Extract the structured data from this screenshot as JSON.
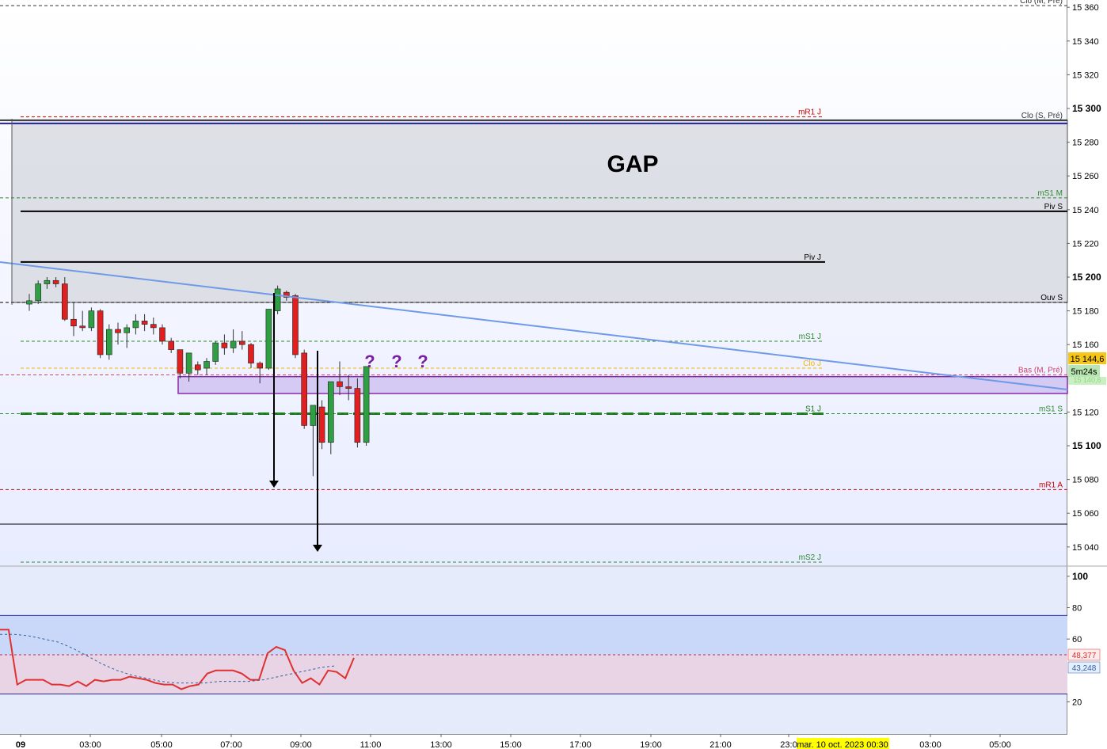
{
  "chart_data": [
    {
      "type": "candlestick",
      "panel": "price",
      "annotation_title": "GAP",
      "question_marks": [
        "?",
        "?",
        "?"
      ],
      "ylim": [
        15032,
        15362
      ],
      "y_ticks": [
        15040,
        15060,
        15080,
        15100,
        15120,
        15140,
        15160,
        15180,
        15200,
        15220,
        15240,
        15260,
        15280,
        15300,
        15320,
        15340,
        15360
      ],
      "y_tick_labels": [
        "15 040",
        "15 060",
        "15 080",
        "15 100",
        "15 120",
        "15 140",
        "15 160",
        "15 180",
        "15 200",
        "15 220",
        "15 240",
        "15 260",
        "15 280",
        "15 300",
        "15 320",
        "15 340",
        "15 360"
      ],
      "x_tick_labels": [
        "09",
        "03:00",
        "05:00",
        "07:00",
        "09:00",
        "11:00",
        "13:00",
        "15:00",
        "17:00",
        "19:00",
        "21:00",
        "23:0",
        "03:00",
        "05:00"
      ],
      "crosshair_date_label": "mar. 10 oct. 2023 00:30",
      "last_price_label": "15 144,6",
      "countdown_label": "5m24s",
      "hidden_price_label": "15 140,6",
      "gap_zone": {
        "from": 15185,
        "to": 15293
      },
      "support_zone": {
        "from": 15131,
        "to": 15141
      },
      "levels": [
        {
          "name": "Clo (M, Pré)",
          "value": 15361,
          "color": "#333333",
          "style": "dashed"
        },
        {
          "name": "mR1 J",
          "value": 15295,
          "color": "#cc0000",
          "style": "dashed"
        },
        {
          "name": "Clo (S, Pré)",
          "value": 15293,
          "color": "#333333",
          "style": "solid"
        },
        {
          "name": "mS1 M",
          "value": 15247,
          "color": "#2e8b2e",
          "style": "dashed"
        },
        {
          "name": "Piv S",
          "value": 15239,
          "color": "#000000",
          "style": "solid"
        },
        {
          "name": "Piv J",
          "value": 15209,
          "color": "#000000",
          "style": "solid"
        },
        {
          "name": "Ouv S",
          "value": 15185,
          "color": "#000000",
          "style": "dashed"
        },
        {
          "name": "mS1 J",
          "value": 15162,
          "color": "#2e8b2e",
          "style": "dashed"
        },
        {
          "name": "Clo J",
          "value": 15146,
          "color": "#f0b400",
          "style": "dashed"
        },
        {
          "name": "Bas (M, Pré)",
          "value": 15142,
          "color": "#cc4466",
          "style": "dashed"
        },
        {
          "name": "S1 J",
          "value": 15119,
          "color": "#1a7a1a",
          "style": "thick-dashed"
        },
        {
          "name": "mS1 S",
          "value": 15119,
          "color": "#2e8b2e",
          "style": "dashed"
        },
        {
          "name": "mR1 A",
          "value": 15074,
          "color": "#cc0000",
          "style": "dashed"
        },
        {
          "name": "mS2 J",
          "value": 15031,
          "color": "#2e8b2e",
          "style": "dashed"
        }
      ],
      "candles": [
        {
          "t": "02:00",
          "o": 15184,
          "h": 15190,
          "l": 15180,
          "c": 15186
        },
        {
          "t": "02:15",
          "o": 15186,
          "h": 15198,
          "l": 15184,
          "c": 15196
        },
        {
          "t": "02:30",
          "o": 15196,
          "h": 15200,
          "l": 15193,
          "c": 15198
        },
        {
          "t": "02:45",
          "o": 15198,
          "h": 15200,
          "l": 15194,
          "c": 15196
        },
        {
          "t": "03:00",
          "o": 15196,
          "h": 15200,
          "l": 15174,
          "c": 15175
        },
        {
          "t": "03:15",
          "o": 15175,
          "h": 15185,
          "l": 15165,
          "c": 15171
        },
        {
          "t": "03:30",
          "o": 15171,
          "h": 15180,
          "l": 15168,
          "c": 15170
        },
        {
          "t": "03:45",
          "o": 15170,
          "h": 15182,
          "l": 15168,
          "c": 15180
        },
        {
          "t": "04:00",
          "o": 15180,
          "h": 15181,
          "l": 15152,
          "c": 15154
        },
        {
          "t": "04:15",
          "o": 15154,
          "h": 15172,
          "l": 15151,
          "c": 15169
        },
        {
          "t": "04:30",
          "o": 15169,
          "h": 15173,
          "l": 15160,
          "c": 15167
        },
        {
          "t": "04:45",
          "o": 15167,
          "h": 15172,
          "l": 15158,
          "c": 15170
        },
        {
          "t": "05:00",
          "o": 15170,
          "h": 15178,
          "l": 15166,
          "c": 15174
        },
        {
          "t": "05:15",
          "o": 15174,
          "h": 15178,
          "l": 15168,
          "c": 15172
        },
        {
          "t": "05:30",
          "o": 15172,
          "h": 15176,
          "l": 15166,
          "c": 15170
        },
        {
          "t": "05:45",
          "o": 15170,
          "h": 15172,
          "l": 15160,
          "c": 15162
        },
        {
          "t": "06:00",
          "o": 15162,
          "h": 15164,
          "l": 15155,
          "c": 15157
        },
        {
          "t": "06:15",
          "o": 15157,
          "h": 15157,
          "l": 15140,
          "c": 15143
        },
        {
          "t": "06:30",
          "o": 15143,
          "h": 15155,
          "l": 15138,
          "c": 15155
        },
        {
          "t": "06:45",
          "o": 15148,
          "h": 15150,
          "l": 15142,
          "c": 15145
        },
        {
          "t": "07:00",
          "o": 15146,
          "h": 15152,
          "l": 15142,
          "c": 15150
        },
        {
          "t": "07:15",
          "o": 15150,
          "h": 15162,
          "l": 15148,
          "c": 15161
        },
        {
          "t": "07:30",
          "o": 15161,
          "h": 15166,
          "l": 15154,
          "c": 15158
        },
        {
          "t": "07:45",
          "o": 15158,
          "h": 15169,
          "l": 15155,
          "c": 15162
        },
        {
          "t": "08:00",
          "o": 15162,
          "h": 15168,
          "l": 15157,
          "c": 15160
        },
        {
          "t": "08:15",
          "o": 15160,
          "h": 15161,
          "l": 15146,
          "c": 15149
        },
        {
          "t": "08:30",
          "o": 15149,
          "h": 15150,
          "l": 15137,
          "c": 15146
        },
        {
          "t": "08:45",
          "o": 15146,
          "h": 15181,
          "l": 15145,
          "c": 15181
        },
        {
          "t": "09:00",
          "o": 15180,
          "h": 15195,
          "l": 15178,
          "c": 15193
        },
        {
          "t": "09:15",
          "o": 15191,
          "h": 15192,
          "l": 15186,
          "c": 15188
        },
        {
          "t": "09:30",
          "o": 15189,
          "h": 15190,
          "l": 15152,
          "c": 15154
        },
        {
          "t": "09:45",
          "o": 15155,
          "h": 15157,
          "l": 15110,
          "c": 15112
        },
        {
          "t": "10:00",
          "o": 15112,
          "h": 15124,
          "l": 15082,
          "c": 15124
        },
        {
          "t": "10:15",
          "o": 15123,
          "h": 15127,
          "l": 15098,
          "c": 15102
        },
        {
          "t": "10:30",
          "o": 15102,
          "h": 15138,
          "l": 15095,
          "c": 15138
        },
        {
          "t": "10:45",
          "o": 15138,
          "h": 15150,
          "l": 15130,
          "c": 15135
        },
        {
          "t": "11:00",
          "o": 15135,
          "h": 15142,
          "l": 15127,
          "c": 15134
        },
        {
          "t": "11:15",
          "o": 15134,
          "h": 15140,
          "l": 15099,
          "c": 15102
        },
        {
          "t": "11:30",
          "o": 15102,
          "h": 15147,
          "l": 15100,
          "c": 15147
        }
      ]
    },
    {
      "type": "line",
      "panel": "oscillator",
      "ylim": [
        0,
        106
      ],
      "y_ticks": [
        20,
        60,
        80,
        100
      ],
      "y_tick_labels": [
        "20",
        "60",
        "80",
        "100"
      ],
      "bands": {
        "upper": 75,
        "mid": 50,
        "lower": 25
      },
      "last_value_labels": [
        "48,377",
        "43,248"
      ],
      "series": [
        {
          "color": "#e03030",
          "style": "solid",
          "values": [
            66,
            66,
            31,
            34,
            34,
            34,
            31,
            31,
            30,
            33,
            30,
            34,
            33,
            34,
            34,
            36,
            35,
            34,
            32,
            31,
            31,
            28,
            30,
            31,
            38,
            40,
            40,
            40,
            38,
            34,
            34,
            51,
            55,
            53,
            40,
            32,
            35,
            31,
            40,
            39,
            35,
            48
          ]
        },
        {
          "color": "#3060a0",
          "style": "dashed",
          "values": [
            63,
            63,
            62,
            60,
            58,
            54,
            49,
            44,
            40,
            37,
            35,
            33,
            32,
            32,
            32,
            33,
            33,
            33,
            34,
            36,
            38,
            40,
            42,
            43
          ]
        }
      ]
    }
  ]
}
